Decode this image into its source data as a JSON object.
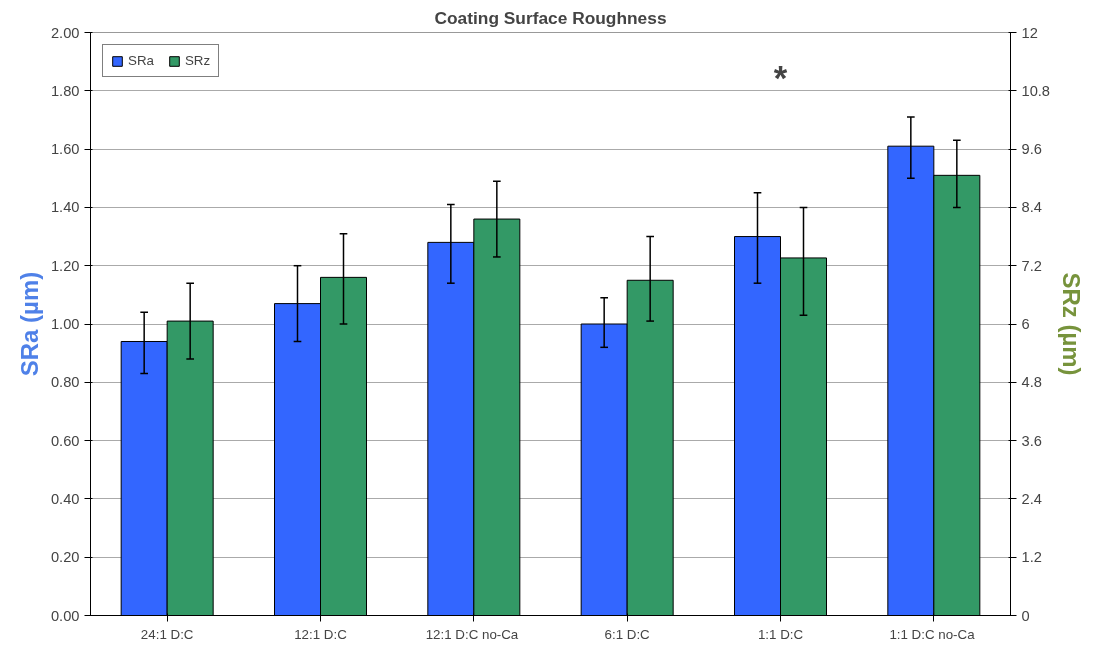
{
  "chart_data": {
    "type": "bar",
    "title": "Coating Surface Roughness",
    "ylabel": "SRa (µm)",
    "y2label": "SRz (µm)",
    "categories": [
      "24:1 D:C",
      "12:1 D:C",
      "12:1 D:C  no-Ca",
      "6:1 D:C",
      "1:1 D:C",
      "1:1 D:C  no-Ca"
    ],
    "series": [
      {
        "name": "SRa",
        "color": "#3366ff",
        "values": [
          0.94,
          1.07,
          1.28,
          1.0,
          1.3,
          1.61
        ],
        "errors": [
          [
            0.83,
            1.04
          ],
          [
            0.94,
            1.2
          ],
          [
            1.14,
            1.41
          ],
          [
            0.92,
            1.09
          ],
          [
            1.14,
            1.45
          ],
          [
            1.5,
            1.71
          ]
        ]
      },
      {
        "name": "SRz",
        "color": "#339966",
        "axis": "y2",
        "values": [
          6.06,
          6.96,
          8.16,
          6.9,
          7.36,
          9.06
        ],
        "errors": [
          [
            5.28,
            6.84
          ],
          [
            6.0,
            7.86
          ],
          [
            7.38,
            8.94
          ],
          [
            6.06,
            7.8
          ],
          [
            6.18,
            8.4
          ],
          [
            8.4,
            9.78
          ]
        ]
      }
    ],
    "ylim": [
      0,
      2
    ],
    "yticks": [
      {
        "value": 0,
        "label": "0.00"
      },
      {
        "value": 0.2,
        "label": "0.20"
      },
      {
        "value": 0.4,
        "label": "0.40"
      },
      {
        "value": 0.6,
        "label": "0.60"
      },
      {
        "value": 0.8,
        "label": "0.80"
      },
      {
        "value": 1,
        "label": "1.00"
      },
      {
        "value": 1.2,
        "label": "1.20"
      },
      {
        "value": 1.4,
        "label": "1.40"
      },
      {
        "value": 1.6,
        "label": "1.60"
      },
      {
        "value": 1.8,
        "label": "1.80"
      },
      {
        "value": 2,
        "label": "2.00"
      }
    ],
    "y2lim": [
      0,
      12
    ],
    "y2ticks": [
      0,
      1.2,
      2.4,
      3.6,
      4.8,
      6,
      7.2,
      8.4,
      9.6,
      10.8,
      12
    ],
    "annotations": [
      "*"
    ],
    "grid": "y",
    "legend": "top left"
  }
}
